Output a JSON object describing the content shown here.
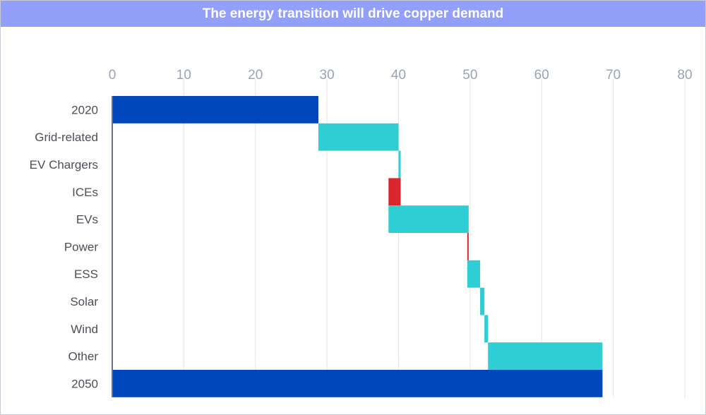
{
  "chart_data": {
    "type": "bar",
    "subtype": "waterfall",
    "orientation": "horizontal",
    "title": "The energy transition will drive copper demand",
    "xlabel": "",
    "ylabel": "",
    "xlim": [
      0,
      80
    ],
    "x_ticks": [
      "0",
      "10",
      "20",
      "30",
      "40",
      "50",
      "60",
      "70",
      "80"
    ],
    "x_axis_position": "top",
    "grid": true,
    "legend": "none",
    "categories": [
      "2020",
      "Grid-related",
      "EV Chargers",
      "ICEs",
      "EVs",
      "Power",
      "ESS",
      "Solar",
      "Wind",
      "Other",
      "2050"
    ],
    "values": [
      28.8,
      11.2,
      0.3,
      -1.7,
      11.2,
      -0.2,
      1.8,
      0.6,
      0.5,
      16.0,
      68.5
    ],
    "kinds": [
      "total",
      "increase",
      "increase",
      "decrease",
      "increase",
      "decrease",
      "increase",
      "increase",
      "increase",
      "increase",
      "total"
    ],
    "colors": {
      "total": "#0047bb",
      "increase": "#2fced4",
      "decrease": "#d9262f"
    }
  }
}
